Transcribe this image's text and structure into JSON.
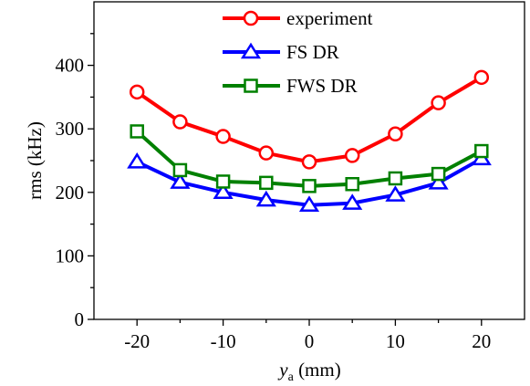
{
  "chart_data": {
    "type": "line",
    "xlabel_var": "y",
    "xlabel_sub": "a",
    "xlabel_unit": " (mm)",
    "ylabel": "rms (kHz)",
    "xlim": [
      -25,
      25
    ],
    "ylim": [
      0,
      500
    ],
    "x_ticks": [
      -20,
      -10,
      0,
      10,
      20
    ],
    "x_minor_ticks": [
      -15,
      -5,
      5,
      15
    ],
    "y_ticks": [
      0,
      100,
      200,
      300,
      400
    ],
    "y_minor_ticks": [
      50,
      150,
      250,
      350,
      450
    ],
    "grid": false,
    "legend_position": "top-center",
    "x": [
      -20,
      -15,
      -10,
      -5,
      0,
      5,
      10,
      15,
      20
    ],
    "series": [
      {
        "name": "experiment",
        "color": "#ff0000",
        "marker": "circle",
        "values": [
          358,
          311,
          288,
          262,
          248,
          258,
          292,
          341,
          381
        ]
      },
      {
        "name": "FS DR",
        "color": "#0000ff",
        "marker": "triangle",
        "values": [
          248,
          216,
          200,
          188,
          180,
          183,
          196,
          215,
          253
        ]
      },
      {
        "name": "FWS DR",
        "color": "#008000",
        "marker": "square",
        "values": [
          296,
          235,
          217,
          215,
          210,
          213,
          222,
          229,
          265
        ]
      }
    ]
  }
}
